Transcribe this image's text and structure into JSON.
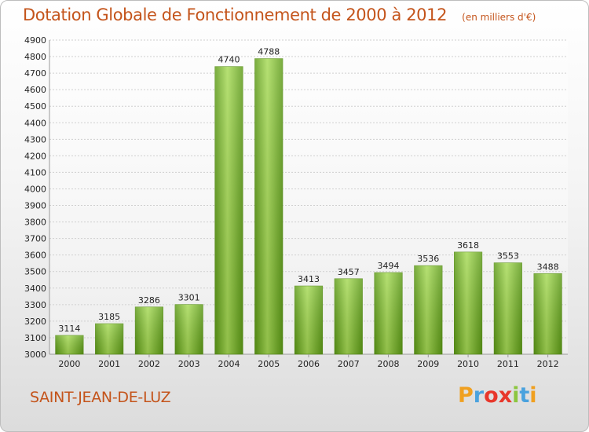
{
  "chart_data": {
    "type": "bar",
    "title": "Dotation Globale de Fonctionnement de 2000 à 2012",
    "subtitle": "(en milliers d'€)",
    "categories": [
      "2000",
      "2001",
      "2002",
      "2003",
      "2004",
      "2005",
      "2006",
      "2007",
      "2008",
      "2009",
      "2010",
      "2011",
      "2012"
    ],
    "values": [
      3114,
      3185,
      3286,
      3301,
      4740,
      4788,
      3413,
      3457,
      3494,
      3536,
      3618,
      3553,
      3488
    ],
    "ylim": [
      3000,
      4900
    ],
    "ytick_step": 100,
    "grid": true,
    "legend": "none",
    "bar_color": "#7fbf2e",
    "bar_color_light": "#a6da55",
    "bar_color_dark": "#5c9a16"
  },
  "footer": {
    "city": "SAINT-JEAN-DE-LUZ",
    "brand": {
      "letters": [
        "P",
        "r",
        "o",
        "x",
        "i",
        "t",
        "i"
      ],
      "colors": [
        "#f0a020",
        "#4aa2de",
        "#e8372b",
        "#e8372b",
        "#8cc63f",
        "#4aa2de",
        "#f0a020"
      ]
    }
  },
  "colors": {
    "title": "#c4541b",
    "grid": "#cfcfcf",
    "axis": "#9a9a9a"
  }
}
